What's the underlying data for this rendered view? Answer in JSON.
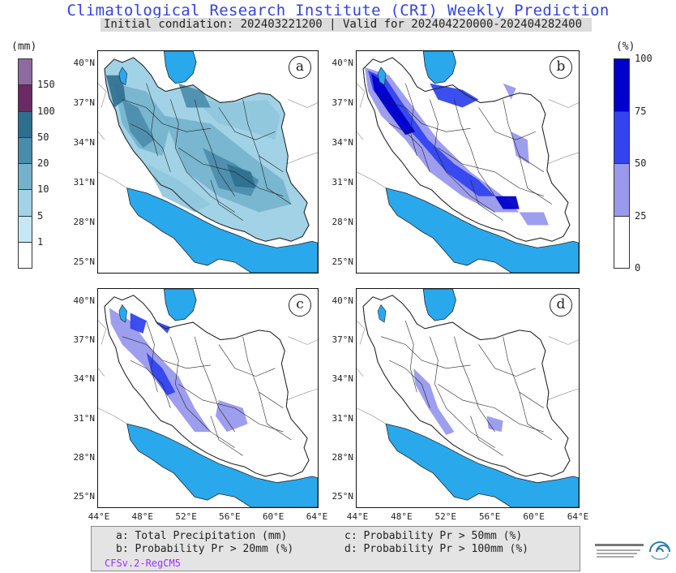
{
  "header": {
    "title": "Climatological Research Institute (CRI) Weekly Prediction",
    "subtitle": "Initial condiation: 202403221200 | Valid for 202404220000-202404282400"
  },
  "left_colorbar": {
    "unit": "(mm)",
    "ticks": [
      "150",
      "100",
      "50",
      "20",
      "10",
      "5",
      "1"
    ],
    "colors": [
      "#8e6aa0",
      "#6a2a64",
      "#2e6e8e",
      "#4a8cac",
      "#74b2cc",
      "#a2d2e6",
      "#c6e8f6",
      "#ffffff"
    ]
  },
  "right_colorbar": {
    "unit": "(%)",
    "ticks": [
      "100",
      "75",
      "50",
      "25",
      "0"
    ],
    "colors": [
      "#0000cc",
      "#3344ee",
      "#9999ee",
      "#ffffff"
    ]
  },
  "panels": [
    {
      "label": "a"
    },
    {
      "label": "b"
    },
    {
      "label": "c"
    },
    {
      "label": "d"
    }
  ],
  "axes": {
    "lat_labels": [
      "40°N",
      "37°N",
      "34°N",
      "31°N",
      "28°N",
      "25°N"
    ],
    "lon_labels": [
      "44°E",
      "48°E",
      "52°E",
      "56°E",
      "60°E",
      "64°E"
    ]
  },
  "legend": {
    "a": "a: Total Precipitation (mm)",
    "b": "b: Probability Pr > 20mm (%)",
    "c": "c: Probability Pr > 50mm (%)",
    "d": "d: Probability Pr > 100mm (%)",
    "model": "CFSv.2-RegCM5"
  },
  "colors": {
    "sea": "#2aa8ec",
    "land_outline": "#222222",
    "title": "#3344dd"
  }
}
